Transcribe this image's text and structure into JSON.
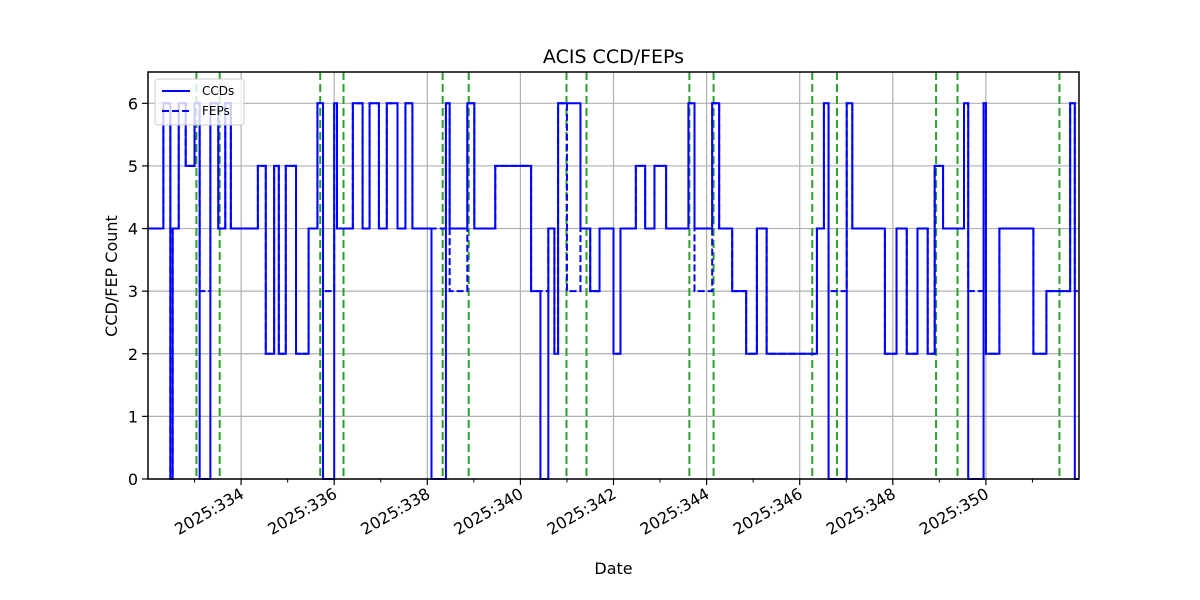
{
  "chart_data": {
    "type": "line",
    "title": "ACIS CCD/FEPs",
    "xlabel": "Date",
    "ylabel": "CCD/FEP Count",
    "xlim": [
      332.0,
      352.0
    ],
    "ylim": [
      0,
      6.5
    ],
    "grid": true,
    "legend_position": "upper left",
    "x_tick_labels": [
      "2025:334",
      "2025:336",
      "2025:338",
      "2025:340",
      "2025:342",
      "2025:344",
      "2025:346",
      "2025:348",
      "2025:350"
    ],
    "x_ticks": [
      334,
      336,
      338,
      340,
      342,
      344,
      346,
      348,
      350
    ],
    "x_minor_ticks": [
      333,
      335,
      337,
      339,
      341,
      343,
      345,
      347,
      349,
      351
    ],
    "y_ticks": [
      0,
      1,
      2,
      3,
      4,
      5,
      6
    ],
    "y_tick_labels": [
      "0",
      "1",
      "2",
      "3",
      "4",
      "5",
      "6"
    ],
    "series": [
      {
        "name": "CCDs",
        "style": "solid",
        "color": "#0000ff",
        "step_points": [
          [
            332.0,
            4
          ],
          [
            332.33,
            6
          ],
          [
            332.48,
            0
          ],
          [
            332.53,
            4
          ],
          [
            332.66,
            6
          ],
          [
            332.81,
            5
          ],
          [
            333.0,
            6
          ],
          [
            333.11,
            0
          ],
          [
            333.34,
            6
          ],
          [
            333.51,
            4
          ],
          [
            333.66,
            6
          ],
          [
            333.78,
            4
          ],
          [
            334.36,
            5
          ],
          [
            334.53,
            2
          ],
          [
            334.71,
            5
          ],
          [
            334.81,
            2
          ],
          [
            334.96,
            5
          ],
          [
            335.18,
            2
          ],
          [
            335.45,
            4
          ],
          [
            335.64,
            6
          ],
          [
            335.76,
            0
          ],
          [
            336.0,
            6
          ],
          [
            336.06,
            4
          ],
          [
            336.4,
            6
          ],
          [
            336.61,
            4
          ],
          [
            336.76,
            6
          ],
          [
            336.96,
            4
          ],
          [
            337.13,
            6
          ],
          [
            337.36,
            4
          ],
          [
            337.53,
            6
          ],
          [
            337.68,
            4
          ],
          [
            338.09,
            0
          ],
          [
            338.4,
            6
          ],
          [
            338.48,
            4
          ],
          [
            338.86,
            6
          ],
          [
            339.01,
            4
          ],
          [
            339.46,
            5
          ],
          [
            340.23,
            3
          ],
          [
            340.43,
            0
          ],
          [
            340.6,
            4
          ],
          [
            340.73,
            2
          ],
          [
            340.81,
            6
          ],
          [
            341.29,
            4
          ],
          [
            341.5,
            3
          ],
          [
            341.7,
            4
          ],
          [
            342.0,
            2
          ],
          [
            342.15,
            4
          ],
          [
            342.48,
            5
          ],
          [
            342.68,
            4
          ],
          [
            342.88,
            5
          ],
          [
            343.13,
            4
          ],
          [
            343.61,
            6
          ],
          [
            343.74,
            4
          ],
          [
            344.12,
            6
          ],
          [
            344.27,
            4
          ],
          [
            344.55,
            3
          ],
          [
            344.85,
            2
          ],
          [
            345.08,
            4
          ],
          [
            345.29,
            2
          ],
          [
            346.37,
            4
          ],
          [
            346.52,
            6
          ],
          [
            346.62,
            0
          ],
          [
            347.01,
            6
          ],
          [
            347.13,
            4
          ],
          [
            347.53,
            4
          ],
          [
            347.83,
            2
          ],
          [
            348.08,
            4
          ],
          [
            348.3,
            2
          ],
          [
            348.53,
            4
          ],
          [
            348.75,
            2
          ],
          [
            348.9,
            5
          ],
          [
            349.08,
            4
          ],
          [
            349.53,
            6
          ],
          [
            349.62,
            0
          ],
          [
            349.95,
            6
          ],
          [
            350.0,
            2
          ],
          [
            350.29,
            4
          ],
          [
            351.02,
            2
          ],
          [
            351.3,
            3
          ],
          [
            351.81,
            6
          ],
          [
            351.91,
            0
          ],
          [
            352.0,
            0
          ]
        ]
      },
      {
        "name": "FEPs",
        "style": "dashed",
        "color": "#0000ff",
        "step_points": [
          [
            332.0,
            4
          ],
          [
            332.33,
            6
          ],
          [
            332.48,
            0
          ],
          [
            332.53,
            4
          ],
          [
            332.66,
            6
          ],
          [
            332.81,
            5
          ],
          [
            333.0,
            6
          ],
          [
            333.11,
            3
          ],
          [
            333.34,
            6
          ],
          [
            333.51,
            4
          ],
          [
            333.66,
            6
          ],
          [
            333.78,
            4
          ],
          [
            334.36,
            5
          ],
          [
            334.53,
            2
          ],
          [
            334.71,
            5
          ],
          [
            334.81,
            2
          ],
          [
            334.96,
            5
          ],
          [
            335.18,
            2
          ],
          [
            335.45,
            4
          ],
          [
            335.64,
            6
          ],
          [
            335.76,
            3
          ],
          [
            336.0,
            6
          ],
          [
            336.06,
            4
          ],
          [
            336.4,
            6
          ],
          [
            336.61,
            4
          ],
          [
            336.76,
            6
          ],
          [
            336.96,
            4
          ],
          [
            337.13,
            6
          ],
          [
            337.36,
            4
          ],
          [
            337.53,
            6
          ],
          [
            337.68,
            4
          ],
          [
            338.09,
            4
          ],
          [
            338.4,
            6
          ],
          [
            338.48,
            3
          ],
          [
            338.86,
            6
          ],
          [
            339.01,
            4
          ],
          [
            339.46,
            5
          ],
          [
            340.23,
            3
          ],
          [
            340.43,
            3
          ],
          [
            340.6,
            4
          ],
          [
            340.73,
            2
          ],
          [
            340.81,
            6
          ],
          [
            341.0,
            3
          ],
          [
            341.29,
            4
          ],
          [
            341.5,
            3
          ],
          [
            341.7,
            4
          ],
          [
            342.0,
            2
          ],
          [
            342.15,
            4
          ],
          [
            342.48,
            5
          ],
          [
            342.68,
            4
          ],
          [
            342.88,
            5
          ],
          [
            343.13,
            4
          ],
          [
            343.61,
            6
          ],
          [
            343.74,
            3
          ],
          [
            344.12,
            6
          ],
          [
            344.27,
            4
          ],
          [
            344.55,
            3
          ],
          [
            344.85,
            2
          ],
          [
            345.08,
            4
          ],
          [
            345.29,
            2
          ],
          [
            346.37,
            4
          ],
          [
            346.52,
            6
          ],
          [
            346.62,
            3
          ],
          [
            347.01,
            6
          ],
          [
            347.13,
            4
          ],
          [
            347.53,
            4
          ],
          [
            347.83,
            2
          ],
          [
            348.08,
            4
          ],
          [
            348.3,
            2
          ],
          [
            348.53,
            4
          ],
          [
            348.75,
            2
          ],
          [
            348.9,
            5
          ],
          [
            349.08,
            4
          ],
          [
            349.53,
            6
          ],
          [
            349.62,
            3
          ],
          [
            349.95,
            6
          ],
          [
            350.0,
            2
          ],
          [
            350.29,
            4
          ],
          [
            351.02,
            2
          ],
          [
            351.3,
            3
          ],
          [
            351.81,
            6
          ],
          [
            351.91,
            3
          ],
          [
            352.0,
            3
          ]
        ]
      }
    ],
    "vertical_markers": {
      "color": "#2ca02c",
      "style": "dashed",
      "x": [
        333.04,
        333.54,
        335.7,
        336.2,
        338.33,
        338.89,
        340.99,
        341.42,
        343.63,
        344.15,
        346.27,
        346.8,
        348.93,
        349.39,
        351.58
      ]
    }
  }
}
